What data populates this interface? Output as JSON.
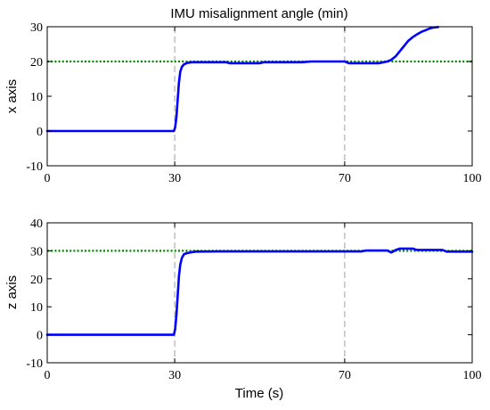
{
  "figure": {
    "title": "IMU misalignment angle (min)",
    "xlabel": "Time (s)"
  },
  "chart_data": [
    {
      "type": "line",
      "title": "IMU misalignment angle (min)",
      "xlabel": "",
      "ylabel": "x axis",
      "xlim": [
        0,
        100
      ],
      "ylim": [
        -10,
        30
      ],
      "xticks": [
        0,
        30,
        70,
        100
      ],
      "yticks": [
        -10,
        0,
        10,
        20,
        30
      ],
      "grid": false,
      "legend": "none",
      "vlines": [
        30,
        70
      ],
      "hline": 20,
      "colors": {
        "series": "#0000ff",
        "reference": "#008000",
        "vline": "#a0a0a0"
      },
      "series": [
        {
          "x": [
            0,
            29.8,
            30.1,
            30.4,
            30.7,
            31.0,
            31.3,
            31.7,
            32.2,
            33,
            34,
            35,
            38,
            42,
            43,
            50,
            51,
            60,
            62,
            70,
            71,
            78,
            80,
            81,
            82,
            83,
            84,
            85,
            86,
            87,
            88,
            89,
            90,
            91,
            92
          ],
          "values": [
            0,
            0,
            1,
            4,
            9,
            14,
            17,
            18.5,
            19.2,
            19.6,
            19.8,
            19.8,
            19.8,
            19.8,
            19.5,
            19.5,
            19.8,
            19.8,
            20,
            20,
            19.5,
            19.5,
            20,
            20.5,
            21.5,
            23,
            24.5,
            26,
            27,
            27.8,
            28.5,
            29,
            29.5,
            29.8,
            29.9
          ]
        }
      ]
    },
    {
      "type": "line",
      "xlabel": "Time (s)",
      "ylabel": "z axis",
      "xlim": [
        0,
        100
      ],
      "ylim": [
        -10,
        40
      ],
      "xticks": [
        0,
        30,
        70,
        100
      ],
      "yticks": [
        -10,
        0,
        10,
        20,
        30,
        40
      ],
      "grid": false,
      "legend": "none",
      "vlines": [
        30,
        70
      ],
      "hline": 30,
      "colors": {
        "series": "#0000ff",
        "reference": "#008000",
        "vline": "#a0a0a0"
      },
      "series": [
        {
          "x": [
            0,
            29.8,
            30.1,
            30.4,
            30.7,
            31.0,
            31.3,
            31.7,
            32.2,
            33,
            34,
            35,
            40,
            50,
            60,
            70,
            74,
            75,
            80,
            81,
            82,
            83,
            86,
            87,
            93,
            94,
            100
          ],
          "values": [
            0,
            0,
            2,
            7,
            14,
            21,
            25,
            27.5,
            28.8,
            29.2,
            29.5,
            29.7,
            29.8,
            29.8,
            29.8,
            29.8,
            29.8,
            30.1,
            30.1,
            29.4,
            30.3,
            30.8,
            30.8,
            30.3,
            30.3,
            29.7,
            29.7
          ]
        }
      ]
    }
  ]
}
